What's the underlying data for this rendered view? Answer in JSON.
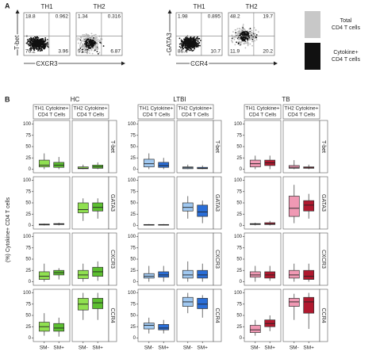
{
  "panel_a": {
    "label": "A",
    "plots": [
      {
        "title": "TH1",
        "quadrants": [
          18.8,
          0.962,
          76.2,
          3.96
        ]
      },
      {
        "title": "TH2",
        "quadrants": [
          1.34,
          0.316,
          91.5,
          6.87
        ]
      },
      {
        "title": "TH1",
        "quadrants": [
          1.98,
          0.895,
          86.4,
          10.7
        ]
      },
      {
        "title": "TH2",
        "quadrants": [
          48.2,
          19.7,
          11.9,
          20.2
        ]
      }
    ],
    "axes": [
      {
        "x": "CXCR3",
        "y": "T-bet"
      },
      {
        "x": "CCR4",
        "y": "GATA3"
      }
    ],
    "legend": [
      {
        "lines": [
          "Total",
          "CD4 T cells"
        ],
        "color": "#c8c8c8"
      },
      {
        "lines": [
          "Cytokine+",
          "CD4 T cells"
        ],
        "color": "#111111"
      }
    ]
  },
  "chart_data": {
    "type": "box",
    "label": "B",
    "ylabel": "(%) Cytokine+ CD4 T cells",
    "ylim": [
      -8,
      108
    ],
    "yticks": [
      0,
      25,
      50,
      75,
      100
    ],
    "categories": [
      "SM-",
      "SM+"
    ],
    "rows": [
      "T-bet",
      "GATA3",
      "CXCR3",
      "CCR4"
    ],
    "groups": [
      {
        "name": "HC",
        "colors": [
          "#90e050",
          "#5cbf30"
        ],
        "columns": [
          {
            "title": [
              "TH1 Cytokine+",
              "CD4 T Cells"
            ],
            "boxes": [
              [
                [
                  0,
                  5,
                  9,
                  20,
                  35
                ],
                [
                  0,
                  4,
                  9,
                  15,
                  27
                ]
              ],
              [
                [
                  0,
                  1,
                  2,
                  3,
                  4
                ],
                [
                  0,
                  2,
                  3,
                  4,
                  6
                ]
              ],
              [
                [
                  0,
                  5,
                  12,
                  22,
                  40
                ],
                [
                  5,
                  15,
                  20,
                  25,
                  30
                ]
              ],
              [
                [
                  5,
                  15,
                  25,
                  35,
                  55
                ],
                [
                  3,
                  15,
                  22,
                  32,
                  45
                ]
              ]
            ]
          },
          {
            "title": [
              "TH2 Cytokine+",
              "CD4 T Cells"
            ],
            "boxes": [
              [
                [
                  0,
                  1,
                  2,
                  5,
                  10
                ],
                [
                  0,
                  2,
                  5,
                  9,
                  15
                ]
              ],
              [
                [
                  10,
                  28,
                  35,
                  50,
                  60
                ],
                [
                  15,
                  32,
                  40,
                  50,
                  60
                ]
              ],
              [
                [
                  0,
                  7,
                  15,
                  25,
                  40
                ],
                [
                  2,
                  12,
                  22,
                  32,
                  45
                ]
              ],
              [
                [
                  40,
                  62,
                  75,
                  88,
                  100
                ],
                [
                  40,
                  65,
                  78,
                  88,
                  100
                ]
              ]
            ]
          }
        ]
      },
      {
        "name": "LTBI",
        "colors": [
          "#a0c8f0",
          "#2a6ed8"
        ],
        "columns": [
          {
            "title": [
              "TH1 Cytokine+",
              "CD4 T Cells"
            ],
            "boxes": [
              [
                [
                  0,
                  5,
                  12,
                  22,
                  35
                ],
                [
                  0,
                  4,
                  8,
                  15,
                  25
                ]
              ],
              [
                [
                  0,
                  1,
                  1,
                  2,
                  3
                ],
                [
                  0,
                  1,
                  1,
                  2,
                  3
                ]
              ],
              [
                [
                  0,
                  8,
                  12,
                  18,
                  35
                ],
                [
                  0,
                  10,
                  15,
                  22,
                  35
                ]
              ],
              [
                [
                  10,
                  20,
                  28,
                  33,
                  45
                ],
                [
                  10,
                  18,
                  22,
                  30,
                  40
                ]
              ]
            ]
          },
          {
            "title": [
              "TH2 Cytokine+",
              "CD4 T Cells"
            ],
            "boxes": [
              [
                [
                  0,
                  1,
                  3,
                  5,
                  10
                ],
                [
                  0,
                  1,
                  2,
                  4,
                  8
                ]
              ],
              [
                [
                  15,
                  32,
                  40,
                  50,
                  65
                ],
                [
                  5,
                  20,
                  30,
                  45,
                  55
                ]
              ],
              [
                [
                  0,
                  8,
                  15,
                  25,
                  45
                ],
                [
                  0,
                  8,
                  15,
                  25,
                  40
                ]
              ],
              [
                [
                  55,
                  70,
                  80,
                  90,
                  100
                ],
                [
                  45,
                  65,
                  75,
                  88,
                  95
                ]
              ]
            ]
          }
        ]
      },
      {
        "name": "TB",
        "colors": [
          "#f099b4",
          "#b0182e"
        ],
        "columns": [
          {
            "title": [
              "TH1 Cytokine+",
              "CD4 T Cells"
            ],
            "boxes": [
              [
                [
                  0,
                  5,
                  12,
                  20,
                  30
                ],
                [
                  0,
                  8,
                  14,
                  20,
                  30
                ]
              ],
              [
                [
                  0,
                  2,
                  3,
                  4,
                  6
                ],
                [
                  0,
                  2,
                  3,
                  6,
                  10
                ]
              ],
              [
                [
                  0,
                  10,
                  15,
                  22,
                  35
                ],
                [
                  2,
                  8,
                  15,
                  22,
                  35
                ]
              ],
              [
                [
                  5,
                  12,
                  18,
                  28,
                  40
                ],
                [
                  15,
                  25,
                  32,
                  40,
                  50
                ]
              ]
            ]
          },
          {
            "title": [
              "TH2 Cytokine+",
              "CD4 T Cells"
            ],
            "boxes": [
              [
                [
                  0,
                  2,
                  4,
                  8,
                  20
                ],
                [
                  0,
                  2,
                  3,
                  5,
                  10
                ]
              ],
              [
                [
                  5,
                  20,
                  38,
                  65,
                  90
                ],
                [
                  15,
                  32,
                  45,
                  55,
                  70
                ]
              ],
              [
                [
                  0,
                  8,
                  15,
                  25,
                  40
                ],
                [
                  0,
                  5,
                  12,
                  25,
                  40
                ]
              ],
              [
                [
                  40,
                  70,
                  80,
                  88,
                  98
                ],
                [
                  20,
                  55,
                  80,
                  90,
                  100
                ]
              ]
            ]
          }
        ]
      }
    ]
  }
}
